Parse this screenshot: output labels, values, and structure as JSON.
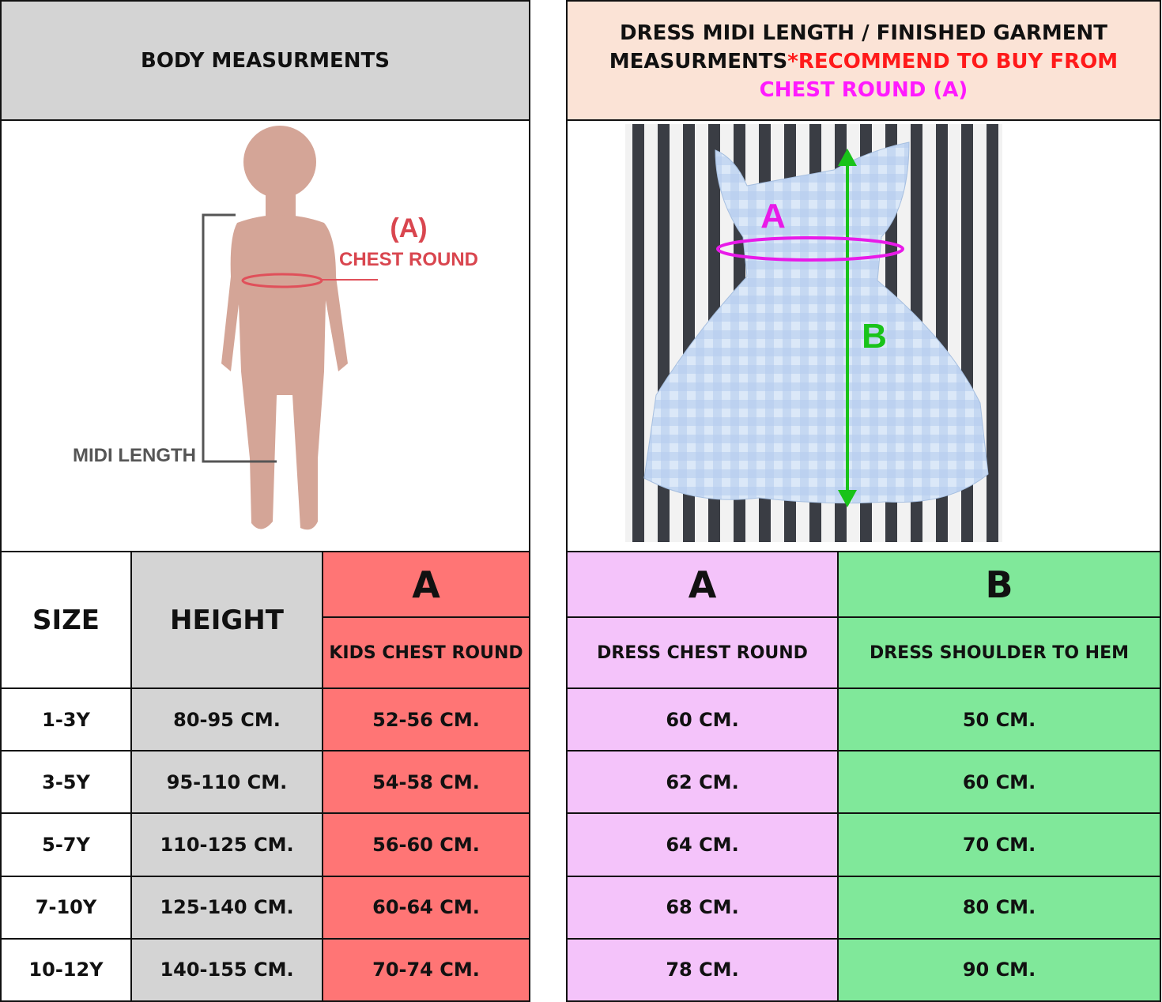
{
  "left": {
    "header": "BODY MEASURMENTS",
    "illustration": {
      "marker": "(A)",
      "chest_label": "CHEST ROUND",
      "length_label": "MIDI LENGTH"
    },
    "table": {
      "headers": [
        "SIZE",
        "HEIGHT",
        "A",
        "KIDS CHEST ROUND"
      ],
      "rows": [
        [
          "1-3Y",
          "80-95 CM.",
          "52-56 CM."
        ],
        [
          "3-5Y",
          "95-110 CM.",
          "54-58 CM."
        ],
        [
          "5-7Y",
          "110-125 CM.",
          "56-60 CM."
        ],
        [
          "7-10Y",
          "125-140 CM.",
          "60-64  CM."
        ],
        [
          "10-12Y",
          "140-155 CM.",
          "70-74 CM."
        ]
      ]
    }
  },
  "right": {
    "header": {
      "parts": [
        "DRESS MIDI LENGTH / FINISHED GARMENT MEASURMENTS",
        "*RECOMMEND TO BUY FROM",
        "CHEST ROUND (A)"
      ]
    },
    "photo": {
      "labels": [
        "A",
        "B"
      ]
    },
    "table": {
      "headers": [
        "A",
        "B",
        "DRESS CHEST ROUND",
        "DRESS SHOULDER TO HEM"
      ],
      "rows": [
        [
          "60 CM.",
          "50 CM."
        ],
        [
          "62 CM.",
          "60 CM."
        ],
        [
          "64 CM.",
          "70 CM."
        ],
        [
          "68 CM.",
          "80 CM."
        ],
        [
          "78 CM.",
          "90 CM."
        ]
      ]
    }
  }
}
